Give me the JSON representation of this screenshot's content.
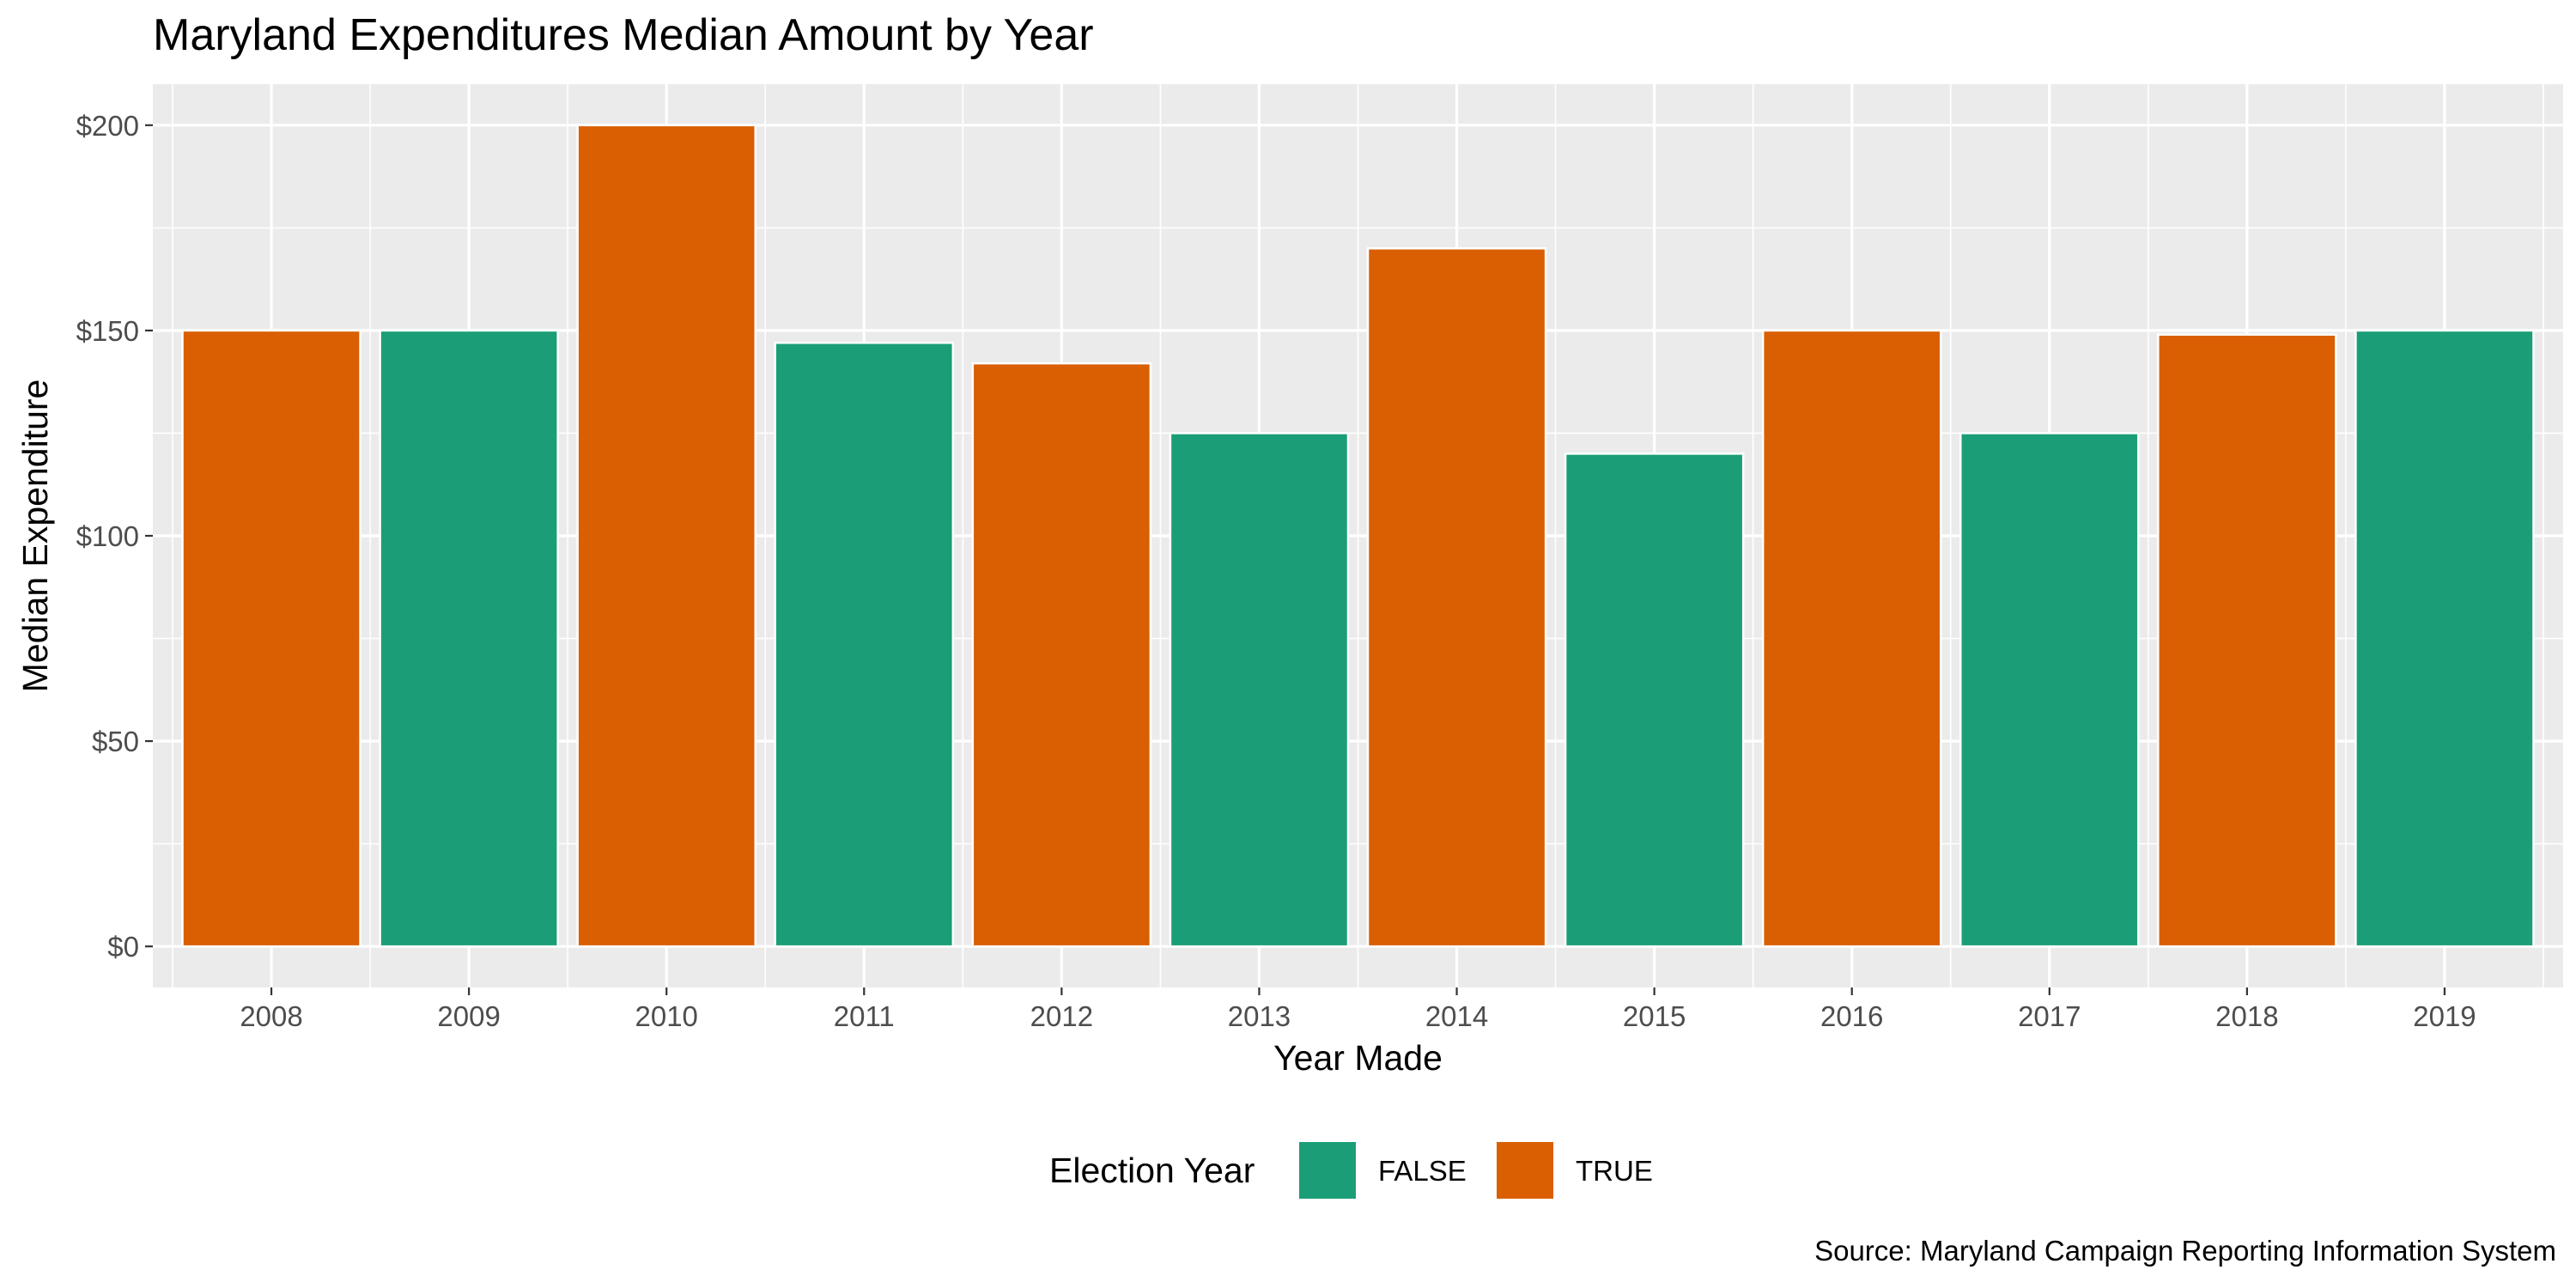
{
  "chart_data": {
    "type": "bar",
    "title": "Maryland Expenditures Median Amount by Year",
    "xlabel": "Year Made",
    "ylabel": "Median Expenditure",
    "caption": "Source: Maryland Campaign Reporting Information System",
    "categories": [
      "2008",
      "2009",
      "2010",
      "2011",
      "2012",
      "2013",
      "2014",
      "2015",
      "2016",
      "2017",
      "2018",
      "2019"
    ],
    "values": [
      150,
      150,
      200,
      147,
      142,
      125,
      170,
      120,
      150,
      125,
      149,
      150
    ],
    "fill_group": [
      "TRUE",
      "FALSE",
      "TRUE",
      "FALSE",
      "TRUE",
      "FALSE",
      "TRUE",
      "FALSE",
      "TRUE",
      "FALSE",
      "TRUE",
      "FALSE"
    ],
    "y_ticks": [
      0,
      50,
      100,
      150,
      200
    ],
    "y_tick_labels": [
      "$0",
      "$50",
      "$100",
      "$150",
      "$200"
    ],
    "ylim": [
      -10,
      210
    ],
    "grid": true,
    "legend": {
      "title": "Election Year",
      "position": "bottom",
      "entries": [
        {
          "label": "FALSE",
          "color": "#1b9e77"
        },
        {
          "label": "TRUE",
          "color": "#d95f02"
        }
      ]
    },
    "colors": {
      "FALSE": "#1b9e77",
      "TRUE": "#d95f02",
      "panel": "#ebebeb",
      "grid": "#ffffff"
    }
  }
}
